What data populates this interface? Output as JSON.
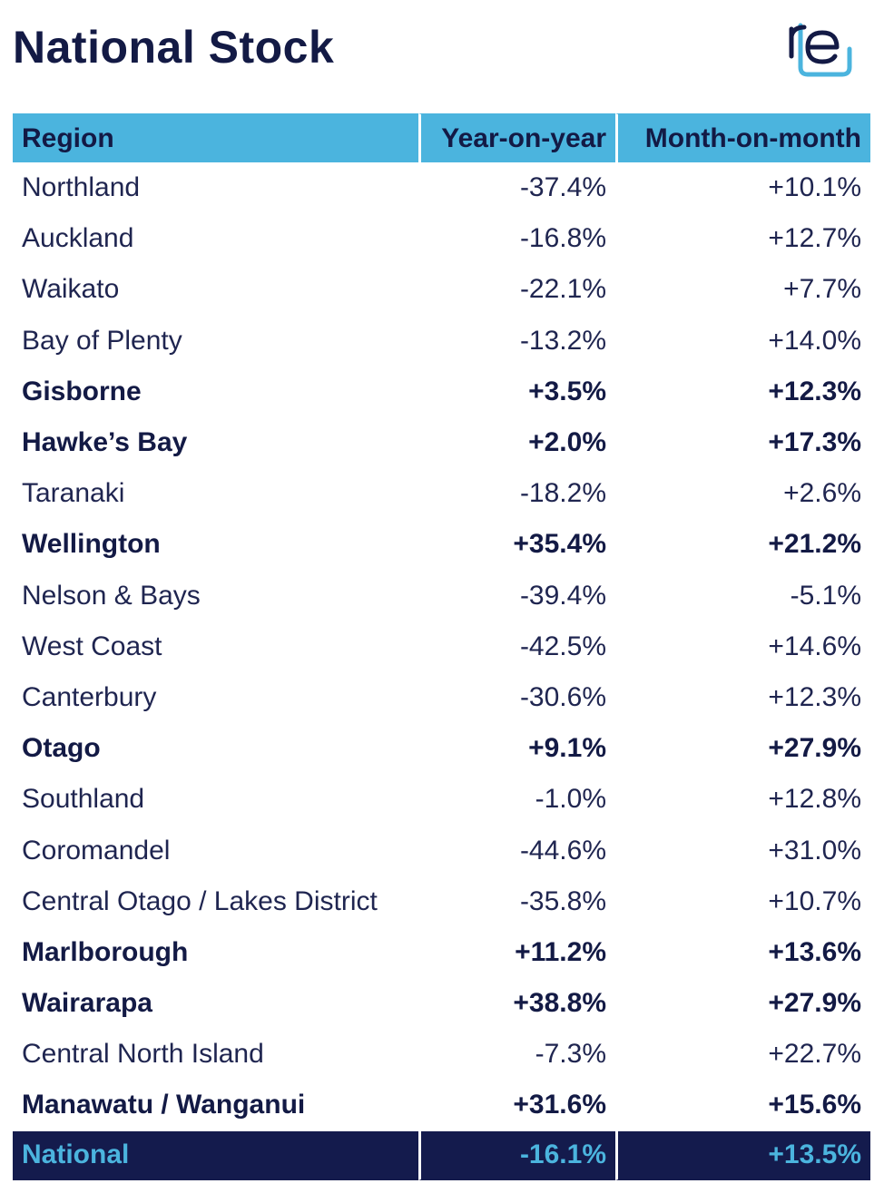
{
  "page": {
    "title": "National Stock"
  },
  "logo": {
    "icon": "re-logo-icon",
    "text": "re",
    "accent_color": "#4bb4de",
    "dark_color": "#131a45"
  },
  "colors": {
    "header_bg": "#4bb4de",
    "footer_bg": "#141b4d",
    "text_dark": "#131a45"
  },
  "table": {
    "headers": {
      "region": "Region",
      "yoy": "Year-on-year",
      "mom": "Month-on-month"
    },
    "rows": [
      {
        "region": "Northland",
        "yoy": "-37.4%",
        "mom": "+10.1%",
        "bold": false
      },
      {
        "region": "Auckland",
        "yoy": "-16.8%",
        "mom": "+12.7%",
        "bold": false
      },
      {
        "region": "Waikato",
        "yoy": "-22.1%",
        "mom": "+7.7%",
        "bold": false
      },
      {
        "region": "Bay of Plenty",
        "yoy": "-13.2%",
        "mom": "+14.0%",
        "bold": false
      },
      {
        "region": "Gisborne",
        "yoy": "+3.5%",
        "mom": "+12.3%",
        "bold": true
      },
      {
        "region": "Hawke’s Bay",
        "yoy": "+2.0%",
        "mom": "+17.3%",
        "bold": true
      },
      {
        "region": "Taranaki",
        "yoy": "-18.2%",
        "mom": "+2.6%",
        "bold": false
      },
      {
        "region": "Wellington",
        "yoy": "+35.4%",
        "mom": "+21.2%",
        "bold": true
      },
      {
        "region": "Nelson & Bays",
        "yoy": "-39.4%",
        "mom": "-5.1%",
        "bold": false
      },
      {
        "region": "West Coast",
        "yoy": "-42.5%",
        "mom": "+14.6%",
        "bold": false
      },
      {
        "region": "Canterbury",
        "yoy": "-30.6%",
        "mom": "+12.3%",
        "bold": false
      },
      {
        "region": "Otago",
        "yoy": "+9.1%",
        "mom": "+27.9%",
        "bold": true
      },
      {
        "region": "Southland",
        "yoy": "-1.0%",
        "mom": "+12.8%",
        "bold": false
      },
      {
        "region": "Coromandel",
        "yoy": "-44.6%",
        "mom": "+31.0%",
        "bold": false
      },
      {
        "region": "Central Otago / Lakes District",
        "yoy": "-35.8%",
        "mom": "+10.7%",
        "bold": false
      },
      {
        "region": "Marlborough",
        "yoy": "+11.2%",
        "mom": "+13.6%",
        "bold": true
      },
      {
        "region": "Wairarapa",
        "yoy": "+38.8%",
        "mom": "+27.9%",
        "bold": true
      },
      {
        "region": "Central North Island",
        "yoy": "-7.3%",
        "mom": "+22.7%",
        "bold": false
      },
      {
        "region": "Manawatu / Wanganui",
        "yoy": "+31.6%",
        "mom": "+15.6%",
        "bold": true
      }
    ],
    "total": {
      "region": "National",
      "yoy": "-16.1%",
      "mom": "+13.5%"
    }
  }
}
